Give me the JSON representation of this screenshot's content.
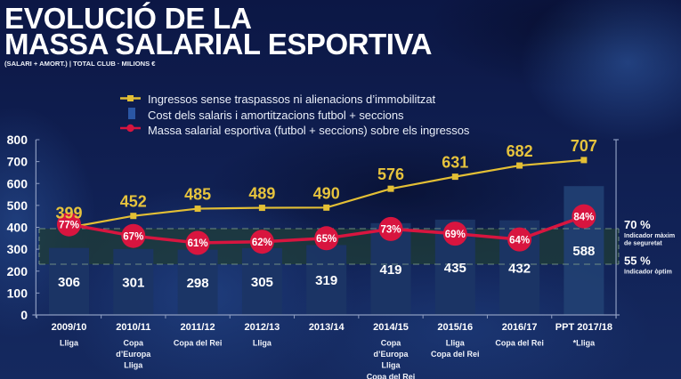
{
  "header": {
    "title_line1": "EVOLUCIÓ DE LA",
    "title_line2": "MASSA SALARIAL ESPORTIVA",
    "subtitle": "(SALARI + AMORT.) | TOTAL CLUB · MILIONS €"
  },
  "legend": [
    {
      "label": "Ingressos sense traspassos ni alienacions d’immobilitzat",
      "icon": "gold-line-square-marker"
    },
    {
      "label": "Cost dels salaris i amortitzacions futbol + seccions",
      "icon": "blue-bar-swatch"
    },
    {
      "label": "Massa salarial esportiva (futbol + seccions) sobre els ingressos",
      "icon": "red-line-circle-marker"
    }
  ],
  "colors": {
    "background": "#0f1d4e",
    "bar": "#1b3565",
    "bar_projected": "#213f72",
    "income_line": "#e3bf35",
    "salary_ratio": "#d8153f",
    "band_fill": "#1f3c36",
    "band_border": "#7e9c89",
    "axis": "#8d9cc0"
  },
  "chart_data": {
    "type": "bar",
    "title": "EVOLUCIÓ DE LA MASSA SALARIAL ESPORTIVA",
    "subtitle": "(SALARI + AMORT.) | TOTAL CLUB · MILIONS €",
    "xlabel": "",
    "ylabel": "",
    "ylim": [
      0,
      800
    ],
    "yticks": [
      0,
      100,
      200,
      300,
      400,
      500,
      600,
      700,
      800
    ],
    "grid": false,
    "legend_position": "top",
    "categories": [
      "2009/10",
      "2010/11",
      "2011/12",
      "2012/13",
      "2013/14",
      "2014/15",
      "2015/16",
      "2016/17",
      "PPT 2017/18"
    ],
    "category_notes": [
      [
        "Lliga"
      ],
      [
        "Copa",
        "d’Europa",
        "Lliga"
      ],
      [
        "Copa del Rei"
      ],
      [
        "Lliga"
      ],
      [],
      [
        "Copa",
        "d’Europa",
        "Lliga",
        "Copa del Rei"
      ],
      [
        "Lliga",
        "Copa del Rei"
      ],
      [
        "Copa del Rei"
      ],
      [
        "*Lliga"
      ]
    ],
    "series": [
      {
        "name": "Cost dels salaris i amortitzacions futbol + seccions",
        "type": "bar",
        "axis": "left",
        "values": [
          306,
          301,
          298,
          305,
          319,
          419,
          435,
          432,
          588
        ]
      },
      {
        "name": "Ingressos sense traspassos ni alienacions d’immobilitzat",
        "type": "line",
        "axis": "left",
        "values": [
          399,
          452,
          485,
          489,
          490,
          576,
          631,
          682,
          707
        ]
      },
      {
        "name": "Massa salarial esportiva (futbol + seccions) sobre els ingressos",
        "type": "line",
        "unit": "%",
        "values": [
          77,
          67,
          61,
          62,
          65,
          73,
          69,
          64,
          84
        ],
        "data_labels": [
          "77%",
          "67%",
          "61%",
          "62%",
          "65%",
          "73%",
          "69%",
          "64%",
          "84%"
        ]
      }
    ],
    "reference_band": {
      "upper": {
        "value": 70,
        "value_label": "70 %",
        "description": [
          "Indicador màxim",
          "de seguretat"
        ]
      },
      "lower": {
        "value": 55,
        "value_label": "55 %",
        "description": [
          "Indicador òptim"
        ]
      }
    }
  }
}
